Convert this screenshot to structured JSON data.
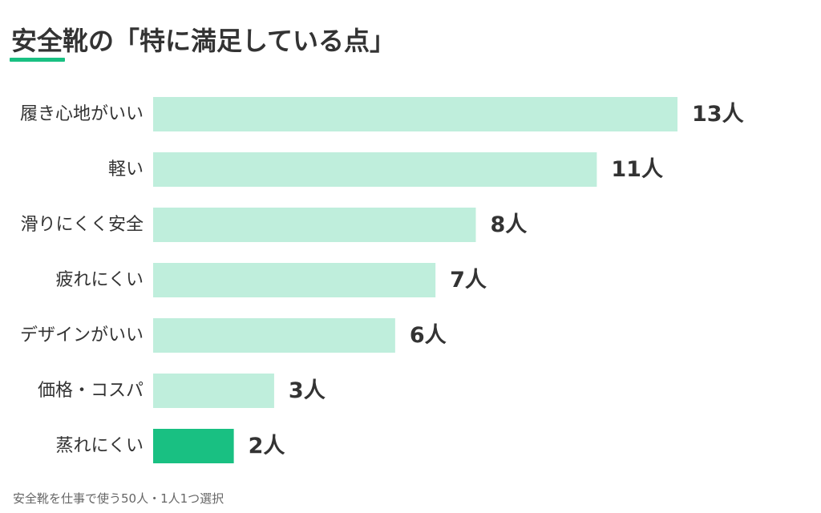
{
  "title": "安全靴の「特に満足している点」",
  "note": "安全靴を仕事で使う50人・1人1つ選択",
  "colors": {
    "bar": "#bfeedc",
    "highlight": "#19c082",
    "accent_underline": "#19c082",
    "text": "#333333",
    "note": "#666666"
  },
  "chart_data": {
    "type": "bar",
    "orientation": "horizontal",
    "title": "安全靴の「特に満足している点」",
    "categories": [
      "履き心地がいい",
      "軽い",
      "滑りにくく安全",
      "疲れにくい",
      "デザインがいい",
      "価格・コスパ",
      "蒸れにくい"
    ],
    "values": [
      13,
      11,
      8,
      7,
      6,
      3,
      2
    ],
    "value_labels": [
      "13人",
      "11人",
      "8人",
      "7人",
      "6人",
      "3人",
      "2人"
    ],
    "unit": "人",
    "highlight_index": 6,
    "xlim": [
      0,
      13
    ]
  }
}
